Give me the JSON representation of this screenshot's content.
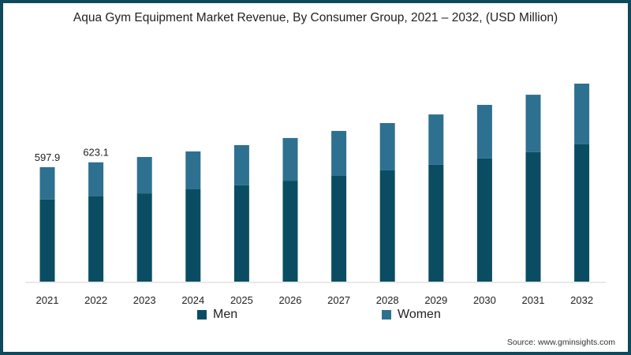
{
  "chart_data": {
    "type": "bar",
    "stacked": true,
    "title": "Aqua Gym Equipment Market Revenue, By Consumer Group, 2021 – 2032, (USD Million)",
    "xlabel": "",
    "ylabel": "",
    "categories": [
      "2021",
      "2022",
      "2023",
      "2024",
      "2025",
      "2026",
      "2027",
      "2028",
      "2029",
      "2030",
      "2031",
      "2032"
    ],
    "series": [
      {
        "name": "Men",
        "color": "#0a4d63",
        "values": [
          429,
          445,
          461,
          482,
          503,
          527,
          552,
          581,
          610,
          643,
          676,
          717
        ]
      },
      {
        "name": "Women",
        "color": "#2e7090",
        "values": [
          168.9,
          178.1,
          190,
          198,
          210,
          223,
          235,
          247,
          263,
          280,
          300,
          317
        ]
      }
    ],
    "data_labels": {
      "2021": "597.9",
      "2022": "623.1"
    },
    "ylim": [
      0,
      1050
    ],
    "grid": false,
    "legend_position": "bottom"
  },
  "source": "Source: www.gminsights.com"
}
